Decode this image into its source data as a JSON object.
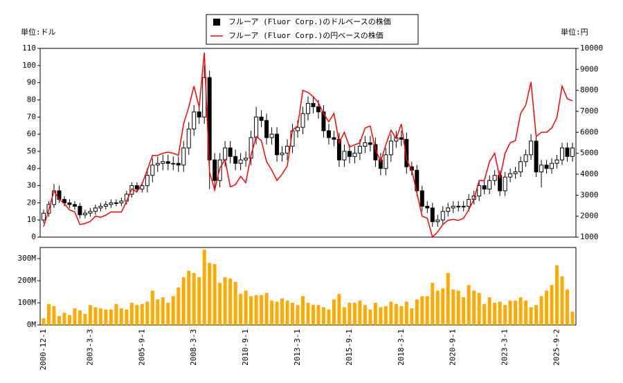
{
  "chart_data": {
    "type": "candlestick",
    "legend": "top",
    "grid": false,
    "y_unit_label": "単位:ドル",
    "y2_unit_label": "単位:円",
    "categories": [
      "2000-12-1",
      null,
      null,
      null,
      null,
      null,
      null,
      null,
      null,
      "2003-3-3",
      null,
      null,
      null,
      null,
      null,
      null,
      null,
      null,
      null,
      "2005-9-1",
      null,
      null,
      null,
      null,
      null,
      null,
      null,
      null,
      null,
      "2008-3-3",
      null,
      null,
      null,
      null,
      null,
      null,
      null,
      null,
      null,
      "2010-9-1",
      null,
      null,
      null,
      null,
      null,
      null,
      null,
      null,
      null,
      "2013-3-1",
      null,
      null,
      null,
      null,
      null,
      null,
      null,
      null,
      null,
      "2015-9-1",
      null,
      null,
      null,
      null,
      null,
      null,
      null,
      null,
      null,
      "2018-3-1",
      null,
      null,
      null,
      null,
      null,
      null,
      null,
      null,
      null,
      "2020-9-1",
      null,
      null,
      null,
      null,
      null,
      null,
      null,
      null,
      null,
      "2023-3-1",
      null,
      null,
      null,
      null,
      null,
      null,
      null,
      null,
      null,
      "2025-9-2",
      null,
      null,
      null
    ],
    "ylim": [
      0,
      110
    ],
    "yticks": [
      0,
      10,
      20,
      30,
      40,
      50,
      60,
      70,
      80,
      90,
      100,
      110
    ],
    "y2lim": [
      1000,
      10000
    ],
    "y2ticks": [
      1000,
      2000,
      3000,
      4000,
      5000,
      6000,
      7000,
      8000,
      9000,
      10000
    ],
    "series": [
      {
        "name": "フルーア (Fluor Corp.)のドルベースの株価",
        "color": "#000000",
        "open": [
          10,
          14,
          19,
          27,
          22,
          20,
          19,
          18,
          13,
          14,
          15,
          17,
          18,
          19,
          20,
          20,
          21,
          25,
          30,
          28,
          30,
          36,
          42,
          43,
          44,
          43,
          43,
          42,
          52,
          63,
          73,
          70,
          93,
          45,
          33,
          45,
          52,
          47,
          43,
          45,
          46,
          58,
          70,
          68,
          58,
          60,
          48,
          49,
          53,
          62,
          64,
          72,
          78,
          76,
          73,
          62,
          58,
          57,
          45,
          50,
          47,
          49,
          53,
          55,
          54,
          45,
          40,
          48,
          56,
          58,
          57,
          41,
          39,
          27,
          18,
          17,
          9,
          10,
          15,
          17,
          18,
          18,
          18,
          22,
          24,
          30,
          28,
          33,
          36,
          27,
          35,
          37,
          38,
          44,
          48,
          56,
          38,
          42,
          40,
          43,
          45,
          52,
          47
        ],
        "high": [
          16,
          21,
          31,
          30,
          24,
          22,
          21,
          20,
          16,
          17,
          19,
          20,
          21,
          22,
          22,
          23,
          27,
          32,
          32,
          32,
          40,
          46,
          47,
          48,
          48,
          47,
          47,
          56,
          67,
          77,
          77,
          100,
          97,
          49,
          49,
          56,
          56,
          51,
          49,
          50,
          62,
          76,
          74,
          72,
          64,
          64,
          53,
          57,
          66,
          68,
          76,
          82,
          82,
          80,
          77,
          66,
          62,
          61,
          54,
          54,
          53,
          57,
          59,
          59,
          58,
          49,
          52,
          60,
          62,
          62,
          61,
          44,
          42,
          30,
          21,
          20,
          13,
          18,
          20,
          21,
          21,
          21,
          25,
          27,
          33,
          33,
          36,
          39,
          39,
          38,
          40,
          41,
          47,
          51,
          60,
          59,
          45,
          45,
          46,
          48,
          55,
          55,
          55
        ],
        "low": [
          8,
          12,
          17,
          20,
          18,
          17,
          16,
          11,
          11,
          12,
          13,
          15,
          16,
          17,
          18,
          18,
          19,
          23,
          26,
          26,
          26,
          32,
          38,
          39,
          39,
          39,
          38,
          38,
          48,
          59,
          66,
          66,
          28,
          28,
          29,
          41,
          43,
          39,
          39,
          41,
          42,
          54,
          64,
          54,
          54,
          44,
          44,
          45,
          49,
          58,
          60,
          68,
          72,
          69,
          58,
          54,
          53,
          41,
          41,
          43,
          43,
          45,
          49,
          50,
          41,
          36,
          36,
          44,
          52,
          53,
          37,
          36,
          24,
          15,
          14,
          6,
          6,
          7,
          12,
          14,
          15,
          15,
          15,
          19,
          21,
          25,
          25,
          30,
          24,
          24,
          32,
          34,
          35,
          41,
          45,
          35,
          29,
          37,
          37,
          40,
          42,
          44,
          44
        ],
        "close": [
          14,
          19,
          27,
          22,
          20,
          19,
          18,
          13,
          14,
          15,
          17,
          18,
          19,
          20,
          20,
          21,
          25,
          30,
          28,
          30,
          36,
          42,
          43,
          44,
          43,
          43,
          42,
          52,
          63,
          73,
          70,
          93,
          45,
          33,
          45,
          52,
          47,
          43,
          45,
          46,
          58,
          70,
          68,
          58,
          60,
          48,
          49,
          53,
          62,
          64,
          72,
          78,
          76,
          73,
          62,
          58,
          57,
          45,
          50,
          47,
          49,
          53,
          55,
          54,
          45,
          40,
          48,
          56,
          58,
          57,
          41,
          39,
          27,
          18,
          17,
          9,
          10,
          15,
          17,
          18,
          18,
          18,
          22,
          24,
          30,
          28,
          33,
          36,
          27,
          35,
          37,
          38,
          44,
          48,
          56,
          38,
          42,
          40,
          43,
          45,
          52,
          47,
          52
        ]
      },
      {
        "name": "フルーア (Fluor Corp.)の円ベースの株価",
        "color": "#ff0000",
        "axis": "y2",
        "values": [
          1500,
          2300,
          3200,
          2800,
          2600,
          2300,
          2200,
          1600,
          1650,
          1750,
          2000,
          1950,
          2050,
          2200,
          2200,
          2200,
          2700,
          3300,
          3150,
          3550,
          4200,
          4900,
          4900,
          5000,
          5050,
          5000,
          4900,
          6400,
          7200,
          8200,
          7200,
          9800,
          4100,
          3250,
          4300,
          4700,
          3400,
          3500,
          3900,
          3600,
          4900,
          5800,
          5600,
          4600,
          4200,
          3700,
          4000,
          4400,
          6100,
          6300,
          8000,
          7900,
          7700,
          7400,
          6900,
          6500,
          6900,
          5500,
          6000,
          5300,
          5400,
          5500,
          6200,
          6300,
          5200,
          4600,
          5400,
          6100,
          5700,
          6400,
          4700,
          4200,
          3100,
          2000,
          1900,
          1000,
          1250,
          1600,
          1800,
          1850,
          1800,
          1900,
          2300,
          2800,
          3700,
          3700,
          4600,
          5000,
          3800,
          5000,
          5500,
          5600,
          6900,
          7300,
          8400,
          5800,
          6000,
          6000,
          6200,
          6700,
          8200,
          7600,
          7500
        ]
      }
    ],
    "volume": {
      "color": "#ffaa00",
      "ylim": [
        0,
        350000000
      ],
      "yticks": [
        {
          "value": 0,
          "label": "0M"
        },
        {
          "value": 100000000,
          "label": "100M"
        },
        {
          "value": 200000000,
          "label": "200M"
        },
        {
          "value": 300000000,
          "label": "300M"
        }
      ],
      "values": [
        30000000,
        95000000,
        85000000,
        40000000,
        55000000,
        45000000,
        75000000,
        65000000,
        50000000,
        90000000,
        80000000,
        75000000,
        70000000,
        70000000,
        95000000,
        75000000,
        70000000,
        100000000,
        90000000,
        95000000,
        105000000,
        155000000,
        115000000,
        125000000,
        100000000,
        130000000,
        170000000,
        215000000,
        245000000,
        235000000,
        215000000,
        340000000,
        280000000,
        275000000,
        190000000,
        215000000,
        210000000,
        195000000,
        140000000,
        155000000,
        130000000,
        135000000,
        135000000,
        145000000,
        110000000,
        105000000,
        120000000,
        110000000,
        100000000,
        90000000,
        130000000,
        100000000,
        90000000,
        90000000,
        80000000,
        70000000,
        115000000,
        140000000,
        80000000,
        100000000,
        100000000,
        110000000,
        90000000,
        70000000,
        100000000,
        80000000,
        85000000,
        105000000,
        95000000,
        85000000,
        105000000,
        75000000,
        115000000,
        130000000,
        130000000,
        190000000,
        155000000,
        165000000,
        235000000,
        160000000,
        155000000,
        125000000,
        180000000,
        155000000,
        145000000,
        95000000,
        125000000,
        100000000,
        105000000,
        90000000,
        110000000,
        110000000,
        125000000,
        110000000,
        80000000,
        90000000,
        130000000,
        155000000,
        180000000,
        270000000,
        220000000,
        160000000,
        60000000
      ]
    }
  }
}
